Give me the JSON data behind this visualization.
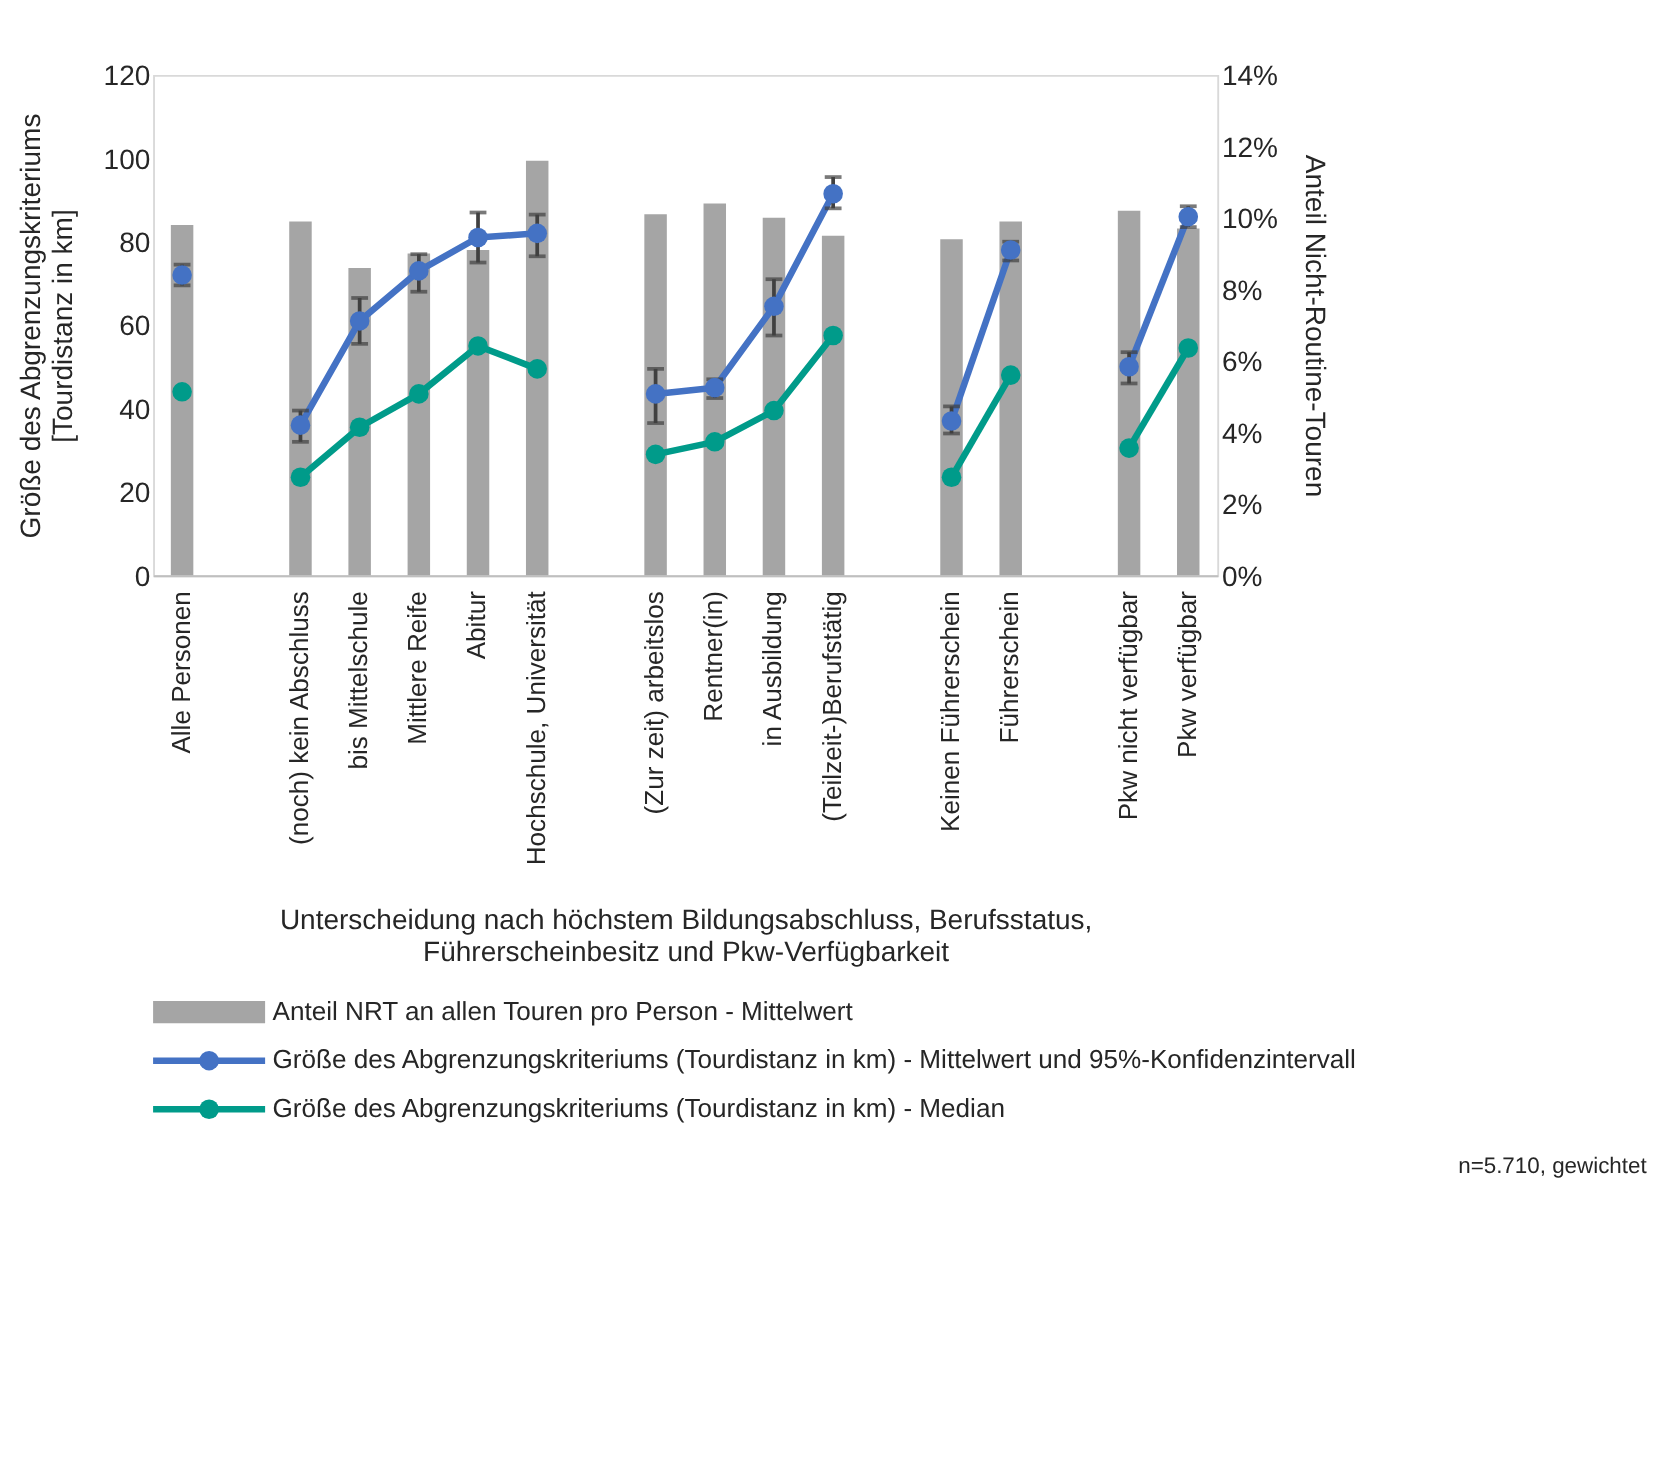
{
  "chart_data": {
    "type": "bar",
    "categories": [
      "Alle Personen",
      null,
      "(noch) kein Abschluss",
      "bis Mittelschule",
      "Mittlere Reife",
      "Abitur",
      "Hochschule, Universität",
      null,
      "(Zur zeit) arbeitslos",
      "Rentner(in)",
      "in Ausbildung",
      "(Teilzeit-)Berufstätig",
      null,
      "Keinen Führerschein",
      "Führerschein",
      null,
      "Pkw nicht verfügbar",
      "Pkw verfügbar"
    ],
    "series": [
      {
        "name": "Anteil NRT an allen Touren pro Person  - Mittelwert",
        "axis": "y2",
        "color": "#a5a5a5",
        "values": [
          9.8,
          null,
          9.9,
          8.6,
          9.0,
          9.1,
          11.6,
          null,
          10.1,
          10.4,
          10.0,
          9.5,
          null,
          9.4,
          9.9,
          null,
          10.2,
          9.7
        ]
      },
      {
        "name": "Größe des Abgrenzungskriteriums (Tourdistanz in km)  - Mittelwert und 95%-Konfidenzintervall",
        "type": "line",
        "color": "#4472c4",
        "values": [
          72,
          null,
          36,
          61,
          73,
          81,
          82,
          null,
          43.5,
          45,
          64.5,
          91.5,
          null,
          37,
          78,
          null,
          50,
          86
        ],
        "errors": [
          [
            69.5,
            74.5
          ],
          null,
          [
            32,
            39.5
          ],
          [
            55.5,
            66.5
          ],
          [
            68,
            77
          ],
          [
            75,
            87
          ],
          [
            76.5,
            86.5
          ],
          null,
          [
            36.5,
            49.5
          ],
          [
            42.5,
            47
          ],
          [
            57.5,
            71
          ],
          [
            88,
            95.5
          ],
          null,
          [
            34,
            40.5
          ],
          [
            75.5,
            80
          ],
          null,
          [
            46,
            53.5
          ],
          [
            83.5,
            88.5
          ]
        ]
      },
      {
        "name": "Größe des Abgrenzungskriteriums (Tourdistanz in km)  - Median",
        "type": "line",
        "color": "#009b8a",
        "values": [
          44,
          null,
          23.5,
          35.5,
          43.5,
          55,
          49.5,
          null,
          29,
          32,
          39.5,
          57.5,
          null,
          23.5,
          48,
          null,
          30.5,
          54.5
        ]
      }
    ],
    "ylim": [
      0,
      120
    ],
    "yticks": [
      0,
      20,
      40,
      60,
      80,
      100,
      120
    ],
    "y2lim": [
      0,
      14
    ],
    "y2ticks": [
      {
        "value": 0,
        "label": "0%"
      },
      {
        "value": 2,
        "label": "2%"
      },
      {
        "value": 4,
        "label": "4%"
      },
      {
        "value": 6,
        "label": "6%"
      },
      {
        "value": 8,
        "label": "8%"
      },
      {
        "value": 10,
        "label": "10%"
      },
      {
        "value": 12,
        "label": "12%"
      },
      {
        "value": 14,
        "label": "14%"
      }
    ],
    "ylabel": "Größe des Abgrenzungskriteriums\n[Tourdistanz in km]",
    "y2label": "Anteil Nicht-Routine-Touren",
    "xlabel": "Unterscheidung nach höchstem Bildungsabschluss, Berufsstatus,\nFührerscheinbesitz und Pkw-Verfügbarkeit",
    "annotations": [
      "n=5.710, gewichtet"
    ],
    "marker": "circle",
    "line_style": "solid",
    "grid": false,
    "legend": "bottom"
  }
}
